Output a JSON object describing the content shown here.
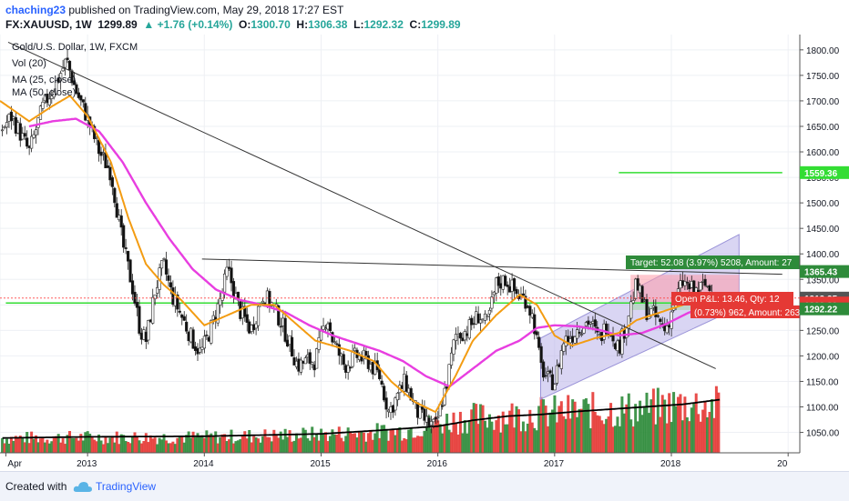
{
  "header": {
    "author": "chaching23",
    "published": "published on TradingView.com, May 29, 2018 17:27 EST",
    "symbol": "FX:XAUUSD, 1W",
    "last": "1299.89",
    "change": "▲ +1.76 (+0.14%)",
    "o_label": "O:",
    "o_value": "1300.70",
    "h_label": "H:",
    "h_value": "1306.38",
    "l_label": "L:",
    "l_value": "1292.32",
    "c_label": "C:",
    "c_value": "1299.89"
  },
  "legend": {
    "instrument": "Gold/U.S. Dollar, 1W, FXCM",
    "vol": "Vol (20)",
    "ma25": "MA (25, close)",
    "ma50": "MA (50, close)"
  },
  "footer": {
    "created": "Created with",
    "brand": "TradingView"
  },
  "colors": {
    "up": "#2e8b3a",
    "down": "#e53935",
    "ma25": "#f39c12",
    "ma50": "#e83ee0",
    "volma": "#000000",
    "hline": "#33dd33",
    "channel": "#b9b3ea"
  },
  "chart_data": {
    "type": "candlestick",
    "y_axis": {
      "ticks": [
        1050,
        1100,
        1150,
        1200,
        1250,
        1300,
        1350,
        1400,
        1450,
        1500,
        1550,
        1600,
        1650,
        1700,
        1750,
        1800
      ],
      "range": [
        1010,
        1830
      ]
    },
    "x_axis": {
      "labels": [
        "Apr",
        "2013",
        "2014",
        "2015",
        "2016",
        "2017",
        "2018",
        "20"
      ],
      "range": [
        "2012-04",
        "2019-02"
      ]
    },
    "price_labels": [
      {
        "value": 1559.36,
        "text": "1559.36",
        "color": "#33dd33"
      },
      {
        "value": 1365.43,
        "text": "1365.43",
        "color": "#2e8b3a"
      },
      {
        "value": 1313.35,
        "text": "1313.35",
        "color": "#555555"
      },
      {
        "value": 1303.73,
        "text": "1303.73",
        "color": "#e53935"
      },
      {
        "value": 1299.89,
        "text": "1299.89",
        "color": "#e53935"
      },
      {
        "value": 1292.22,
        "text": "1292.22",
        "color": "#2e8b3a"
      }
    ],
    "position_labels": {
      "target": "Target: 52.08 (3.97%) 5208, Amount: 27",
      "open": "Open P&L: 13.46, Qty: 12",
      "stop": "(0.73%) 962, Amount: 263"
    },
    "hlines": [
      {
        "value": 1559.36,
        "from": 2017.55,
        "to": 2018.95
      },
      {
        "value": 1303.73,
        "from": 2012.3,
        "to": 2018.95
      }
    ],
    "price_anchors": [
      [
        2012.25,
        1640
      ],
      [
        2012.35,
        1670
      ],
      [
        2012.5,
        1600
      ],
      [
        2012.62,
        1690
      ],
      [
        2012.72,
        1730
      ],
      [
        2012.82,
        1780
      ],
      [
        2012.9,
        1720
      ],
      [
        2013.0,
        1665
      ],
      [
        2013.1,
        1600
      ],
      [
        2013.2,
        1560
      ],
      [
        2013.3,
        1420
      ],
      [
        2013.38,
        1340
      ],
      [
        2013.45,
        1250
      ],
      [
        2013.5,
        1230
      ],
      [
        2013.58,
        1330
      ],
      [
        2013.65,
        1380
      ],
      [
        2013.72,
        1320
      ],
      [
        2013.82,
        1270
      ],
      [
        2013.9,
        1230
      ],
      [
        2013.97,
        1205
      ],
      [
        2014.05,
        1250
      ],
      [
        2014.15,
        1320
      ],
      [
        2014.2,
        1370
      ],
      [
        2014.3,
        1290
      ],
      [
        2014.4,
        1250
      ],
      [
        2014.5,
        1320
      ],
      [
        2014.58,
        1300
      ],
      [
        2014.65,
        1270
      ],
      [
        2014.72,
        1230
      ],
      [
        2014.8,
        1180
      ],
      [
        2014.88,
        1190
      ],
      [
        2014.95,
        1190
      ],
      [
        2015.05,
        1280
      ],
      [
        2015.1,
        1230
      ],
      [
        2015.2,
        1180
      ],
      [
        2015.3,
        1200
      ],
      [
        2015.4,
        1190
      ],
      [
        2015.5,
        1160
      ],
      [
        2015.58,
        1090
      ],
      [
        2015.65,
        1120
      ],
      [
        2015.72,
        1150
      ],
      [
        2015.82,
        1090
      ],
      [
        2015.9,
        1070
      ],
      [
        2015.98,
        1060
      ],
      [
        2016.08,
        1150
      ],
      [
        2016.15,
        1240
      ],
      [
        2016.25,
        1250
      ],
      [
        2016.35,
        1280
      ],
      [
        2016.42,
        1260
      ],
      [
        2016.5,
        1340
      ],
      [
        2016.58,
        1350
      ],
      [
        2016.68,
        1320
      ],
      [
        2016.76,
        1310
      ],
      [
        2016.82,
        1270
      ],
      [
        2016.88,
        1180
      ],
      [
        2016.95,
        1150
      ],
      [
        2017.0,
        1150
      ],
      [
        2017.08,
        1230
      ],
      [
        2017.15,
        1240
      ],
      [
        2017.2,
        1255
      ],
      [
        2017.3,
        1270
      ],
      [
        2017.38,
        1230
      ],
      [
        2017.45,
        1265
      ],
      [
        2017.55,
        1215
      ],
      [
        2017.62,
        1270
      ],
      [
        2017.7,
        1340
      ],
      [
        2017.78,
        1290
      ],
      [
        2017.85,
        1280
      ],
      [
        2017.95,
        1250
      ],
      [
        2018.05,
        1320
      ],
      [
        2018.1,
        1345
      ],
      [
        2018.2,
        1325
      ],
      [
        2018.3,
        1340
      ],
      [
        2018.37,
        1315
      ],
      [
        2018.42,
        1300
      ]
    ],
    "ma25_anchors": [
      [
        2012.25,
        1700
      ],
      [
        2012.5,
        1660
      ],
      [
        2012.7,
        1690
      ],
      [
        2012.85,
        1710
      ],
      [
        2013.0,
        1670
      ],
      [
        2013.2,
        1580
      ],
      [
        2013.35,
        1470
      ],
      [
        2013.5,
        1380
      ],
      [
        2013.65,
        1340
      ],
      [
        2013.8,
        1310
      ],
      [
        2014.0,
        1260
      ],
      [
        2014.2,
        1280
      ],
      [
        2014.4,
        1300
      ],
      [
        2014.6,
        1300
      ],
      [
        2014.75,
        1270
      ],
      [
        2014.95,
        1230
      ],
      [
        2015.1,
        1220
      ],
      [
        2015.25,
        1210
      ],
      [
        2015.45,
        1190
      ],
      [
        2015.6,
        1150
      ],
      [
        2015.8,
        1110
      ],
      [
        2015.98,
        1090
      ],
      [
        2016.15,
        1160
      ],
      [
        2016.3,
        1230
      ],
      [
        2016.5,
        1280
      ],
      [
        2016.7,
        1320
      ],
      [
        2016.85,
        1300
      ],
      [
        2017.0,
        1240
      ],
      [
        2017.15,
        1220
      ],
      [
        2017.35,
        1235
      ],
      [
        2017.55,
        1245
      ],
      [
        2017.7,
        1270
      ],
      [
        2017.9,
        1285
      ],
      [
        2018.1,
        1300
      ],
      [
        2018.3,
        1320
      ],
      [
        2018.42,
        1315
      ]
    ],
    "ma50_anchors": [
      [
        2012.5,
        1650
      ],
      [
        2012.7,
        1660
      ],
      [
        2012.9,
        1665
      ],
      [
        2013.1,
        1640
      ],
      [
        2013.3,
        1580
      ],
      [
        2013.5,
        1500
      ],
      [
        2013.7,
        1430
      ],
      [
        2013.9,
        1370
      ],
      [
        2014.1,
        1330
      ],
      [
        2014.3,
        1310
      ],
      [
        2014.5,
        1300
      ],
      [
        2014.7,
        1285
      ],
      [
        2014.9,
        1260
      ],
      [
        2015.1,
        1240
      ],
      [
        2015.3,
        1225
      ],
      [
        2015.5,
        1210
      ],
      [
        2015.7,
        1190
      ],
      [
        2015.9,
        1160
      ],
      [
        2016.1,
        1140
      ],
      [
        2016.3,
        1175
      ],
      [
        2016.5,
        1210
      ],
      [
        2016.7,
        1230
      ],
      [
        2016.85,
        1255
      ],
      [
        2017.0,
        1260
      ],
      [
        2017.2,
        1258
      ],
      [
        2017.4,
        1250
      ],
      [
        2017.55,
        1240
      ],
      [
        2017.75,
        1245
      ],
      [
        2017.95,
        1262
      ],
      [
        2018.15,
        1285
      ],
      [
        2018.42,
        1305
      ]
    ],
    "volume_anchors": [
      [
        2012.25,
        0.3
      ],
      [
        2013.0,
        0.32
      ],
      [
        2014.0,
        0.32
      ],
      [
        2015.0,
        0.38
      ],
      [
        2015.7,
        0.45
      ],
      [
        2016.2,
        0.7
      ],
      [
        2016.8,
        0.8
      ],
      [
        2017.2,
        0.85
      ],
      [
        2017.8,
        0.9
      ],
      [
        2018.1,
        1.0
      ],
      [
        2018.42,
        0.95
      ]
    ],
    "volma_anchors": [
      [
        2012.25,
        0.25
      ],
      [
        2013.0,
        0.27
      ],
      [
        2014.0,
        0.28
      ],
      [
        2014.5,
        0.3
      ],
      [
        2015.0,
        0.32
      ],
      [
        2015.5,
        0.38
      ],
      [
        2016.0,
        0.45
      ],
      [
        2016.3,
        0.55
      ],
      [
        2016.6,
        0.62
      ],
      [
        2016.9,
        0.65
      ],
      [
        2017.2,
        0.7
      ],
      [
        2017.5,
        0.74
      ],
      [
        2017.8,
        0.78
      ],
      [
        2018.1,
        0.82
      ],
      [
        2018.42,
        0.9
      ]
    ],
    "trendlines": [
      {
        "from": [
          2012.32,
          1815
        ],
        "to": [
          2018.38,
          1175
        ],
        "color": "#333333"
      },
      {
        "from": [
          2013.98,
          1390
        ],
        "to": [
          2018.95,
          1360
        ],
        "color": "#333333"
      }
    ],
    "channel": {
      "lower_from": [
        2016.88,
        1115
      ],
      "lower_to": [
        2018.58,
        1295
      ],
      "upper_from": [
        2016.88,
        1235
      ],
      "upper_to": [
        2018.58,
        1438
      ]
    },
    "boxes": [
      {
        "from": 2017.65,
        "to": 2018.58,
        "top": 1359,
        "bottom": 1306,
        "color": "#ff9aa8"
      },
      {
        "from": 2017.65,
        "to": 2018.58,
        "top": 1306,
        "bottom": 1290,
        "color": "#a5d6a7"
      }
    ]
  }
}
